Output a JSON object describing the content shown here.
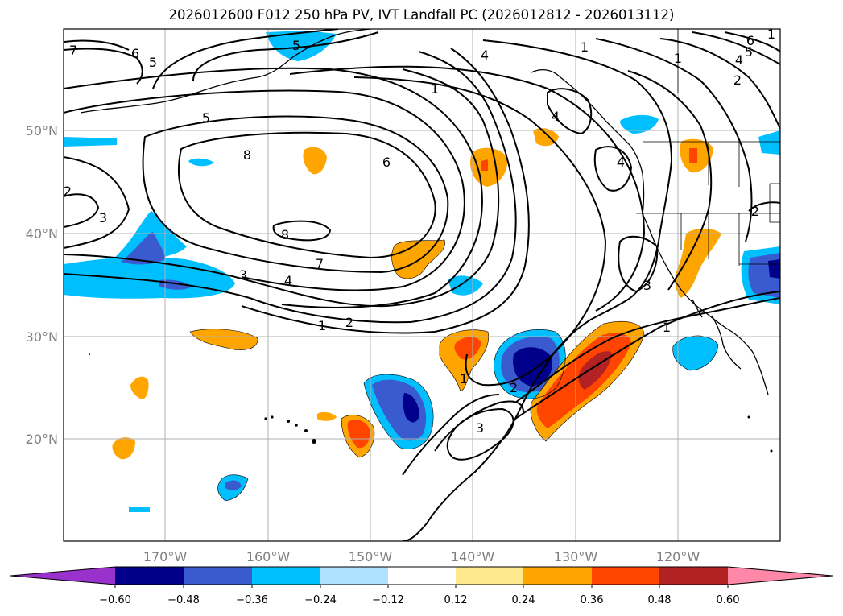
{
  "title": "2026012600 F012 250 hPa PV, IVT Landfall PC (2026012812 - 2026013112)",
  "map": {
    "lat_labels": [
      "50°N",
      "40°N",
      "30°N",
      "20°N"
    ],
    "lon_labels": [
      "170°W",
      "160°W",
      "150°W",
      "140°W",
      "130°W",
      "120°W"
    ],
    "contour_labels": [
      "7",
      "6",
      "5",
      "5",
      "8",
      "8",
      "6",
      "5",
      "4",
      "1",
      "4",
      "4",
      "3",
      "2",
      "1",
      "7",
      "3",
      "4",
      "3",
      "2",
      "1",
      "1",
      "2",
      "3",
      "2",
      "1",
      "6",
      "5",
      "4",
      "2",
      "1",
      "1"
    ]
  },
  "colorbar": {
    "tick_labels": [
      "−0.60",
      "−0.48",
      "−0.36",
      "−0.24",
      "−0.12",
      "0.12",
      "0.24",
      "0.36",
      "0.48",
      "0.60"
    ],
    "colors": [
      "#9932cc",
      "#00008b",
      "#3a5bcf",
      "#00bfff",
      "#b0e2ff",
      "#ffffff",
      "#ffe98f",
      "#ffa500",
      "#ff4500",
      "#b22222",
      "#ff88a8"
    ]
  },
  "colors": {
    "dark_blue": "#00008b",
    "mid_blue": "#3a5bcf",
    "light_blue": "#00bfff",
    "pale_blue": "#b0e2ff",
    "pale_yellow": "#ffe98f",
    "orange": "#ffa500",
    "red_orange": "#ff4500",
    "dark_red": "#b22222",
    "pink": "#ff88a8"
  }
}
